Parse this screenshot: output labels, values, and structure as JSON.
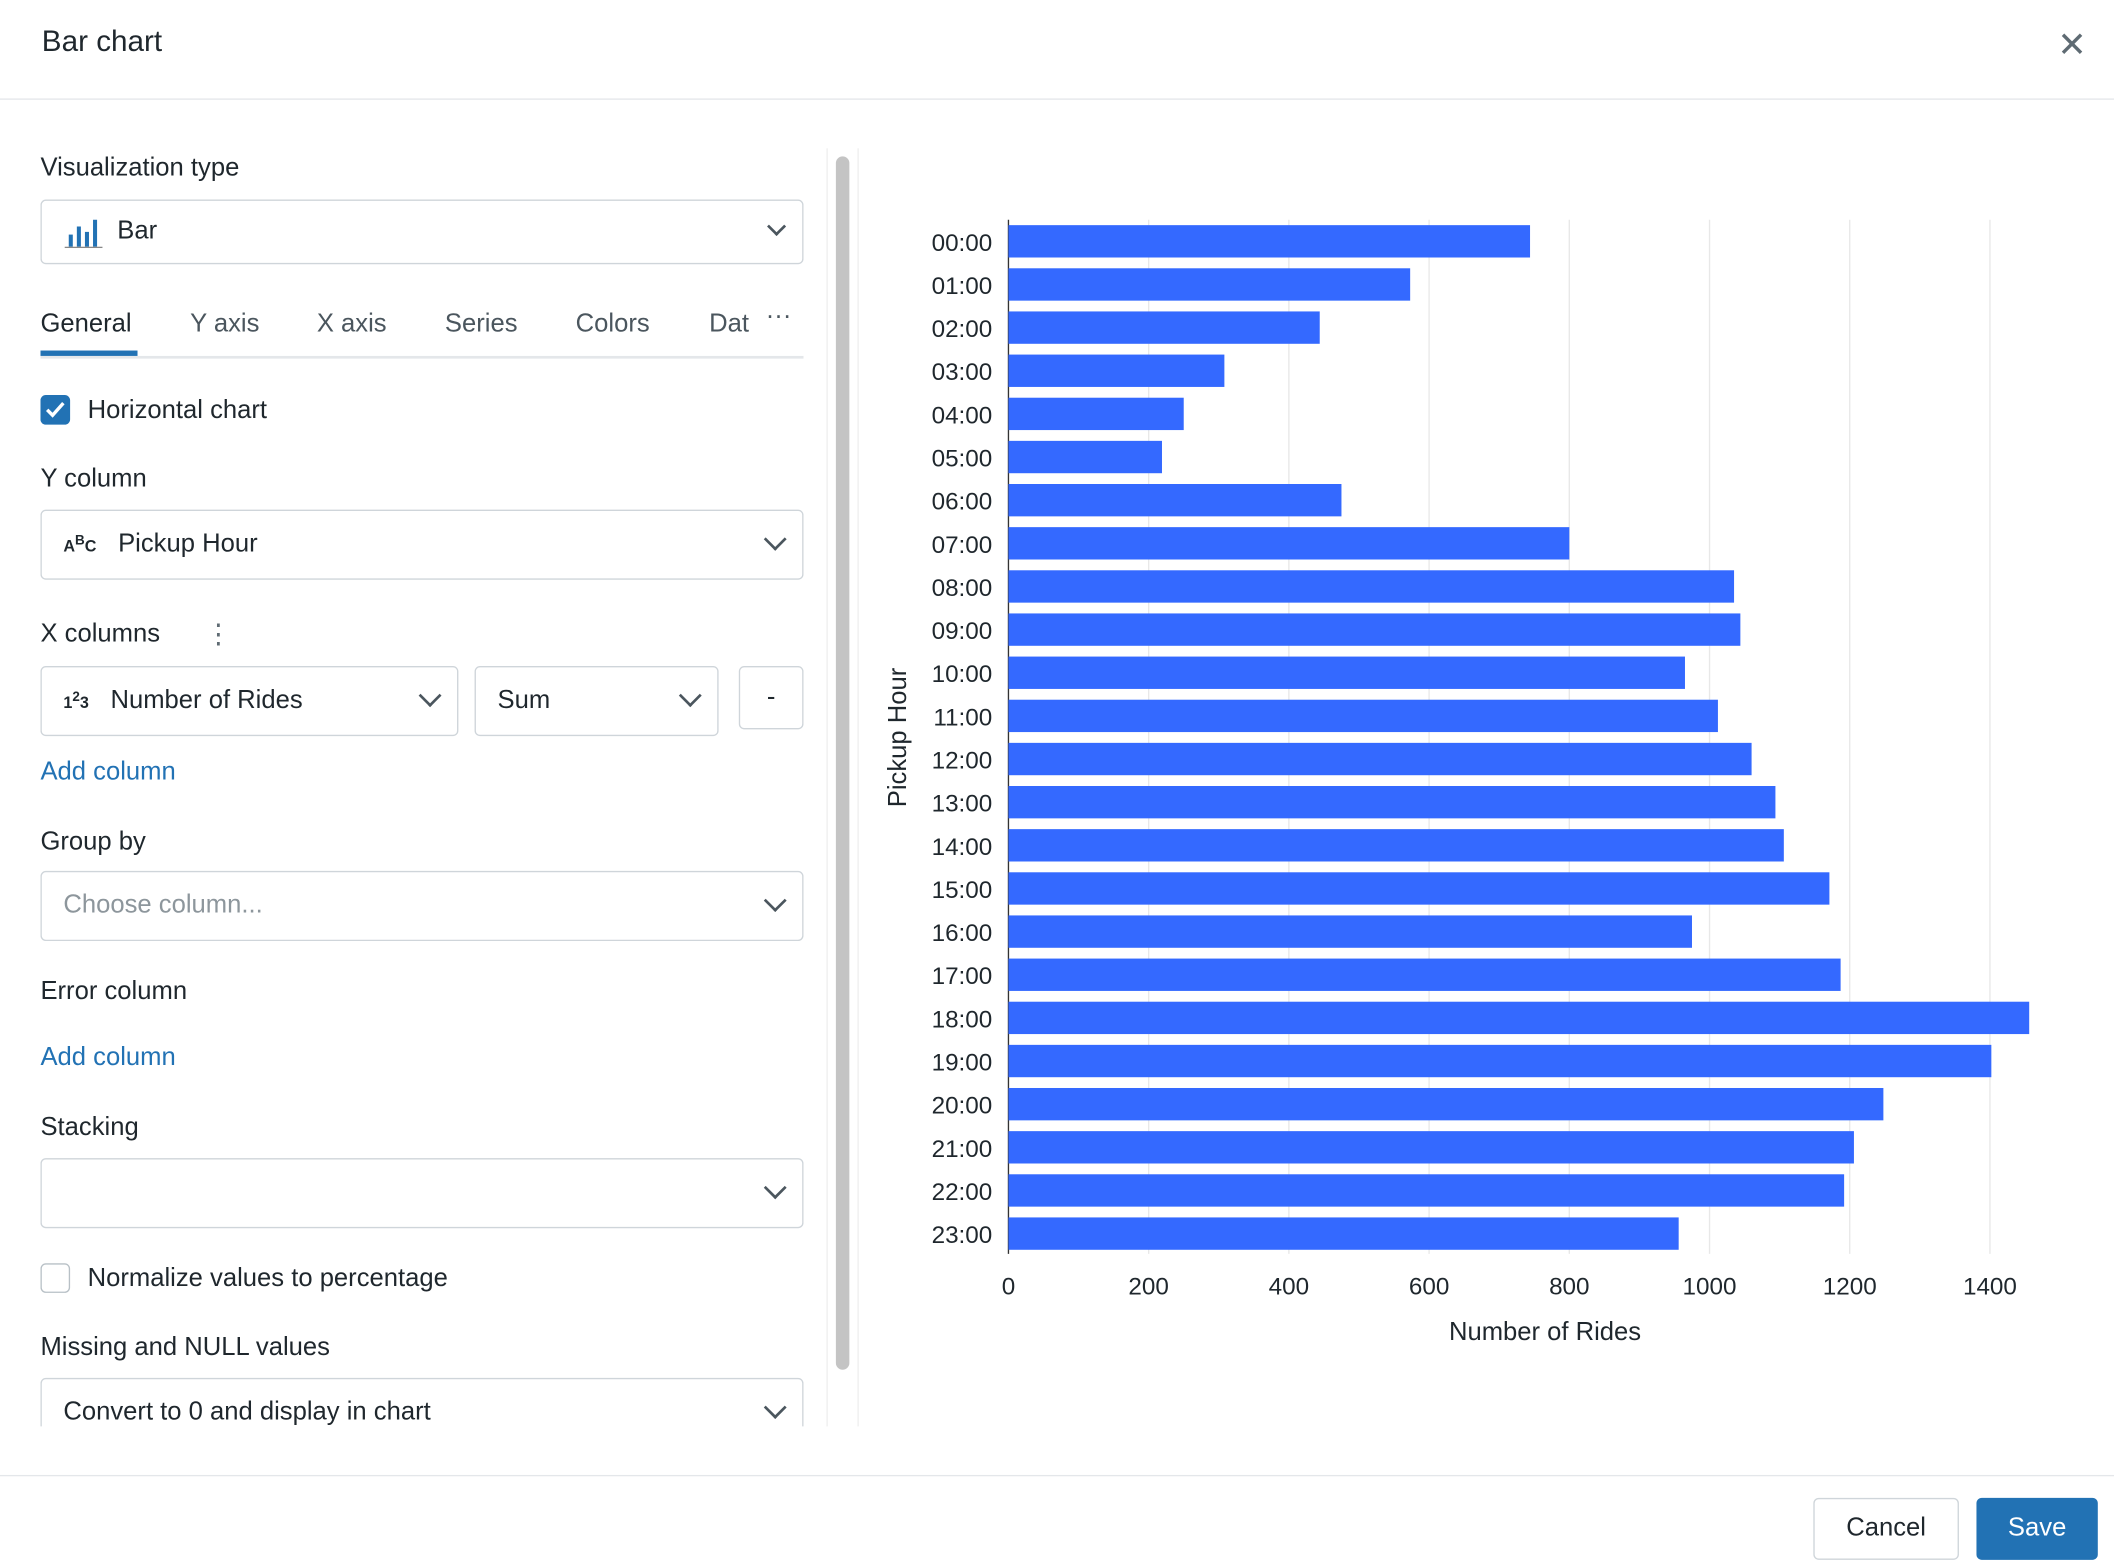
{
  "dialog": {
    "title": "Bar chart",
    "close_icon": "close-icon"
  },
  "left": {
    "viz_type_label": "Visualization type",
    "viz_type_value": "Bar",
    "tabs": [
      "General",
      "Y axis",
      "X axis",
      "Series",
      "Colors",
      "Dat"
    ],
    "active_tab": "General",
    "more_tabs": "···",
    "horizontal_chart": {
      "label": "Horizontal chart",
      "checked": true
    },
    "y_column_label": "Y column",
    "y_column_value": "Pickup Hour",
    "x_columns_label": "X columns",
    "x_column_value": "Number of Rides",
    "x_column_agg": "Sum",
    "remove_label": "-",
    "add_column": "Add column",
    "group_by_label": "Group by",
    "group_by_placeholder": "Choose column...",
    "error_column_label": "Error column",
    "add_column_2": "Add column",
    "stacking_label": "Stacking",
    "stacking_value": "",
    "normalize": {
      "label": "Normalize values to percentage",
      "checked": false
    },
    "missing_label": "Missing and NULL values",
    "missing_value": "Convert to 0 and display in chart"
  },
  "footer": {
    "cancel": "Cancel",
    "save": "Save"
  },
  "colors": {
    "accent": "#2272b4",
    "bar": "#3469ff"
  },
  "chart_data": {
    "type": "bar",
    "orientation": "horizontal",
    "categories": [
      "00:00",
      "01:00",
      "02:00",
      "03:00",
      "04:00",
      "05:00",
      "06:00",
      "07:00",
      "08:00",
      "09:00",
      "10:00",
      "11:00",
      "12:00",
      "13:00",
      "14:00",
      "15:00",
      "16:00",
      "17:00",
      "18:00",
      "19:00",
      "20:00",
      "21:00",
      "22:00",
      "23:00"
    ],
    "values": [
      744,
      573,
      444,
      308,
      250,
      219,
      475,
      800,
      1035,
      1044,
      965,
      1012,
      1060,
      1094,
      1106,
      1171,
      975,
      1187,
      1456,
      1402,
      1248,
      1206,
      1192,
      956
    ],
    "xlabel": "Number of Rides",
    "ylabel": "Pickup Hour",
    "xlim": [
      0,
      1450
    ],
    "xticks": [
      0,
      200,
      400,
      600,
      800,
      1000,
      1200,
      1400
    ],
    "grid": true
  }
}
